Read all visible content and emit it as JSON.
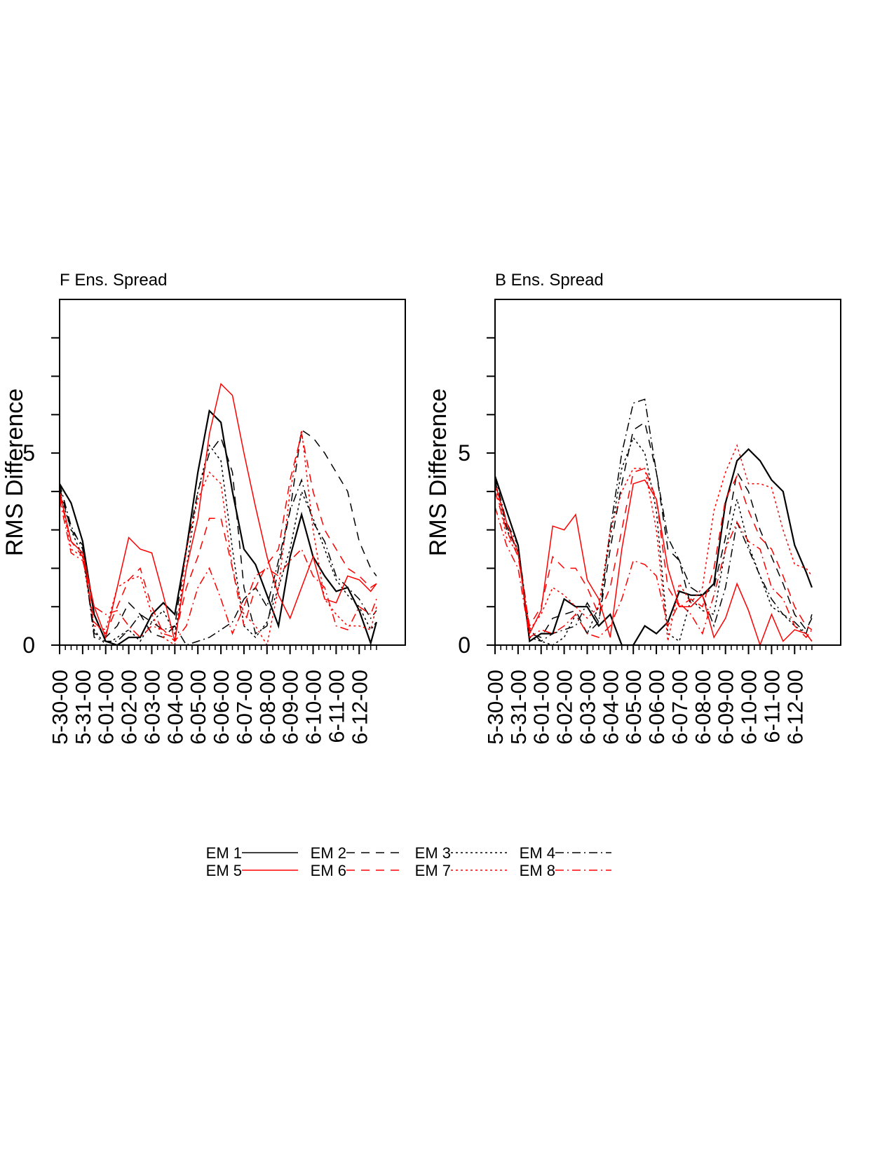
{
  "chart_data": [
    {
      "type": "line",
      "title": "F Ens. Spread",
      "ylabel": "RMS Difference",
      "x": [
        0,
        2,
        4,
        6,
        8,
        10,
        12,
        14,
        16,
        18,
        20,
        22,
        24,
        26,
        28,
        30,
        32,
        34,
        36,
        38,
        40,
        42,
        44,
        46,
        48,
        50,
        52,
        54,
        55
      ],
      "xlim": [
        0,
        60
      ],
      "ylim": [
        0,
        9
      ],
      "yticks": [
        0,
        5
      ],
      "yminor_ticks": [
        1,
        2,
        3,
        4,
        6,
        7,
        8
      ],
      "xticks": [
        {
          "value": 0,
          "label": "5-30-00"
        },
        {
          "value": 4,
          "label": "5-31-00"
        },
        {
          "value": 8,
          "label": "6-01-00"
        },
        {
          "value": 12,
          "label": "6-02-00"
        },
        {
          "value": 16,
          "label": "6-03-00"
        },
        {
          "value": 20,
          "label": "6-04-00"
        },
        {
          "value": 24,
          "label": "6-05-00"
        },
        {
          "value": 28,
          "label": "6-06-00"
        },
        {
          "value": 32,
          "label": "6-07-00"
        },
        {
          "value": 36,
          "label": "6-08-00"
        },
        {
          "value": 40,
          "label": "6-09-00"
        },
        {
          "value": 44,
          "label": "6-10-00"
        },
        {
          "value": 48,
          "label": "6-11-00"
        },
        {
          "value": 52,
          "label": "6-12-00"
        }
      ],
      "xminor_ticks": [
        1,
        2,
        3,
        5,
        6,
        7,
        9,
        10,
        11,
        13,
        14,
        15,
        17,
        18,
        19,
        21,
        22,
        23,
        25,
        26,
        27,
        29,
        30,
        31,
        33,
        34,
        35,
        37,
        38,
        39,
        41,
        42,
        43,
        45,
        46,
        47,
        49,
        50,
        51,
        53,
        54,
        55
      ],
      "series": [
        {
          "name": "EM 1",
          "color": "#000000",
          "dash": "solid",
          "values": [
            4.2,
            3.7,
            2.7,
            0.8,
            0.1,
            0.0,
            0.2,
            0.2,
            0.8,
            1.1,
            0.8,
            2.5,
            4.5,
            6.1,
            5.8,
            4.0,
            2.5,
            2.1,
            1.3,
            0.5,
            2.3,
            3.4,
            2.3,
            1.8,
            1.4,
            1.5,
            0.9,
            0.05,
            0.6
          ]
        },
        {
          "name": "EM 2",
          "color": "#000000",
          "dash": "dashed",
          "values": [
            4.1,
            3.0,
            2.6,
            0.3,
            0.2,
            0.5,
            1.1,
            0.8,
            0.3,
            0.2,
            0.5,
            2.5,
            4.0,
            5.0,
            5.4,
            4.5,
            1.5,
            0.3,
            0.5,
            2.0,
            3.5,
            5.6,
            5.4,
            5.0,
            4.5,
            4.0,
            2.7,
            2.0,
            1.8
          ]
        },
        {
          "name": "EM 3",
          "color": "#000000",
          "dash": "dotted",
          "values": [
            4.0,
            3.0,
            2.3,
            0.4,
            0.0,
            0.2,
            0.4,
            0.1,
            0.6,
            0.9,
            0.3,
            2.0,
            4.0,
            5.2,
            4.8,
            2.5,
            0.5,
            0.2,
            0.6,
            1.5,
            2.5,
            4.0,
            3.3,
            2.5,
            1.7,
            1.3,
            1.0,
            0.4,
            0.6
          ]
        },
        {
          "name": "EM 4",
          "color": "#000000",
          "dash": "dashdot",
          "values": [
            4.2,
            3.1,
            2.5,
            0.2,
            0.1,
            0.1,
            0.4,
            0.8,
            0.6,
            0.4,
            0.5,
            0.0,
            0.1,
            0.2,
            0.4,
            0.6,
            1.2,
            1.5,
            1.0,
            2.2,
            3.5,
            4.3,
            3.2,
            2.7,
            1.8,
            1.5,
            1.2,
            0.7,
            0.9
          ]
        },
        {
          "name": "EM 5",
          "color": "#ff0000",
          "dash": "solid",
          "values": [
            4.0,
            2.7,
            2.4,
            1.0,
            0.2,
            1.5,
            2.8,
            2.5,
            2.4,
            1.3,
            0.1,
            2.0,
            3.3,
            5.5,
            6.8,
            6.5,
            5.0,
            3.6,
            2.3,
            1.3,
            0.7,
            1.5,
            2.3,
            1.2,
            1.1,
            1.8,
            1.7,
            1.4,
            1.6
          ]
        },
        {
          "name": "EM 6",
          "color": "#ff0000",
          "dash": "dashed",
          "values": [
            3.9,
            2.7,
            2.3,
            0.6,
            0.3,
            1.0,
            1.7,
            2.0,
            1.0,
            0.3,
            0.2,
            1.5,
            2.3,
            3.3,
            3.3,
            2.0,
            0.5,
            1.5,
            2.1,
            2.5,
            4.3,
            5.5,
            4.0,
            3.0,
            2.5,
            2.0,
            1.8,
            1.5,
            1.6
          ]
        },
        {
          "name": "EM 7",
          "color": "#ff0000",
          "dash": "dotted",
          "values": [
            4.0,
            2.5,
            2.3,
            0.5,
            0.4,
            1.5,
            1.7,
            1.8,
            0.8,
            0.2,
            0.0,
            2.5,
            3.8,
            4.5,
            4.2,
            2.0,
            0.8,
            0.5,
            0.0,
            1.5,
            4.0,
            5.6,
            3.0,
            1.2,
            0.8,
            0.5,
            0.5,
            0.4,
            1.0
          ]
        },
        {
          "name": "EM 8",
          "color": "#ff0000",
          "dash": "dashdot",
          "values": [
            3.8,
            2.4,
            2.2,
            1.0,
            0.8,
            0.9,
            0.5,
            0.2,
            0.5,
            0.4,
            0.1,
            0.5,
            1.5,
            2.0,
            1.2,
            0.3,
            1.0,
            1.8,
            2.0,
            1.8,
            2.2,
            2.5,
            1.8,
            1.5,
            0.5,
            0.4,
            1.0,
            0.8,
            1.2
          ]
        }
      ]
    },
    {
      "type": "line",
      "title": "B Ens. Spread",
      "ylabel": "RMS Difference",
      "x": [
        0,
        2,
        4,
        6,
        8,
        10,
        12,
        14,
        16,
        18,
        20,
        22,
        24,
        26,
        28,
        30,
        32,
        34,
        36,
        38,
        40,
        42,
        44,
        46,
        48,
        50,
        52,
        54,
        55
      ],
      "xlim": [
        0,
        60
      ],
      "ylim": [
        0,
        9
      ],
      "yticks": [
        0,
        5
      ],
      "yminor_ticks": [
        1,
        2,
        3,
        4,
        6,
        7,
        8
      ],
      "xticks": [
        {
          "value": 0,
          "label": "5-30-00"
        },
        {
          "value": 4,
          "label": "5-31-00"
        },
        {
          "value": 8,
          "label": "6-01-00"
        },
        {
          "value": 12,
          "label": "6-02-00"
        },
        {
          "value": 16,
          "label": "6-03-00"
        },
        {
          "value": 20,
          "label": "6-04-00"
        },
        {
          "value": 24,
          "label": "6-05-00"
        },
        {
          "value": 28,
          "label": "6-06-00"
        },
        {
          "value": 32,
          "label": "6-07-00"
        },
        {
          "value": 36,
          "label": "6-08-00"
        },
        {
          "value": 40,
          "label": "6-09-00"
        },
        {
          "value": 44,
          "label": "6-10-00"
        },
        {
          "value": 48,
          "label": "6-11-00"
        },
        {
          "value": 52,
          "label": "6-12-00"
        }
      ],
      "xminor_ticks": [
        1,
        2,
        3,
        5,
        6,
        7,
        9,
        10,
        11,
        13,
        14,
        15,
        17,
        18,
        19,
        21,
        22,
        23,
        25,
        26,
        27,
        29,
        30,
        31,
        33,
        34,
        35,
        37,
        38,
        39,
        41,
        42,
        43,
        45,
        46,
        47,
        49,
        50,
        51,
        53,
        54,
        55
      ],
      "series": [
        {
          "color": "#000000",
          "dash": "solid",
          "values": [
            4.4,
            3.5,
            2.6,
            0.1,
            0.3,
            0.3,
            1.2,
            1.0,
            1.0,
            0.5,
            0.8,
            0.0,
            0.0,
            0.5,
            0.3,
            0.6,
            1.4,
            1.3,
            1.3,
            1.6,
            3.7,
            4.8,
            5.1,
            4.8,
            4.3,
            4.0,
            2.6,
            1.9,
            1.5
          ]
        },
        {
          "color": "#000000",
          "dash": "dashed",
          "values": [
            4.3,
            3.1,
            2.4,
            0.3,
            0.2,
            0.7,
            0.8,
            0.9,
            0.3,
            0.6,
            2.5,
            4.2,
            5.6,
            5.8,
            4.5,
            2.5,
            2.2,
            1.0,
            1.3,
            1.5,
            2.8,
            4.5,
            4.0,
            3.0,
            2.3,
            1.6,
            0.8,
            0.4,
            0.7
          ]
        },
        {
          "color": "#000000",
          "dash": "dotted",
          "values": [
            4.3,
            3.0,
            2.5,
            0.2,
            0.1,
            0.0,
            0.2,
            0.8,
            0.3,
            1.0,
            2.8,
            4.6,
            5.4,
            5.0,
            3.5,
            0.3,
            0.1,
            1.2,
            0.9,
            0.8,
            2.5,
            3.8,
            2.6,
            1.8,
            1.0,
            0.8,
            0.5,
            0.3,
            0.1
          ]
        },
        {
          "color": "#000000",
          "dash": "dashdot",
          "values": [
            4.4,
            3.2,
            2.6,
            0.4,
            0.1,
            0.3,
            0.4,
            0.5,
            1.1,
            0.6,
            3.0,
            5.0,
            6.3,
            6.4,
            4.5,
            2.8,
            2.2,
            1.5,
            1.3,
            0.5,
            1.5,
            3.2,
            2.5,
            1.8,
            1.2,
            0.8,
            0.6,
            0.3,
            0.8
          ]
        },
        {
          "color": "#ff0000",
          "dash": "solid",
          "values": [
            4.2,
            3.2,
            2.4,
            0.3,
            0.9,
            3.1,
            3.0,
            3.4,
            1.7,
            1.2,
            0.2,
            2.5,
            4.2,
            4.3,
            3.8,
            2.0,
            1.0,
            1.0,
            1.3,
            0.2,
            0.7,
            1.6,
            0.9,
            0.0,
            0.8,
            0.1,
            0.4,
            0.3,
            0.1
          ]
        },
        {
          "color": "#ff0000",
          "dash": "dashed",
          "values": [
            4.0,
            3.0,
            2.3,
            0.5,
            1.0,
            2.3,
            2.0,
            2.0,
            1.5,
            0.8,
            1.5,
            3.0,
            4.5,
            4.6,
            3.8,
            1.5,
            1.0,
            1.2,
            1.0,
            2.0,
            3.8,
            4.4,
            3.5,
            2.8,
            2.5,
            1.8,
            1.0,
            0.5,
            0.4
          ]
        },
        {
          "color": "#ff0000",
          "dash": "dotted",
          "values": [
            4.2,
            2.8,
            2.4,
            0.4,
            0.8,
            1.5,
            1.3,
            1.0,
            0.7,
            1.0,
            3.0,
            4.0,
            4.6,
            4.6,
            3.0,
            0.1,
            1.6,
            1.1,
            1.5,
            3.5,
            4.5,
            5.2,
            4.2,
            4.2,
            4.1,
            3.0,
            2.1,
            2.0,
            1.8
          ]
        },
        {
          "color": "#ff0000",
          "dash": "dashdot",
          "values": [
            3.6,
            2.6,
            2.0,
            0.2,
            0.4,
            0.3,
            0.5,
            0.8,
            0.3,
            0.2,
            0.5,
            1.2,
            2.2,
            2.1,
            1.8,
            0.5,
            1.1,
            0.8,
            0.3,
            1.3,
            2.5,
            3.2,
            2.7,
            2.5,
            1.5,
            1.2,
            0.5,
            0.2,
            0.4
          ]
        }
      ]
    }
  ]
}
